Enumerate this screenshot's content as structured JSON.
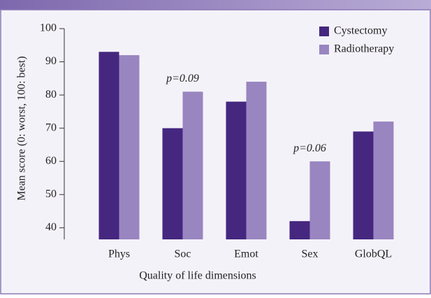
{
  "chart_data": {
    "type": "bar",
    "x_label": "Quality of life dimensions",
    "y_label": "Mean score (0: worst, 100: best)",
    "categories": [
      "Phys",
      "Soc",
      "Emot",
      "Sex",
      "GlobQL"
    ],
    "series": [
      {
        "name": "Cystectomy",
        "color": "#45277f",
        "values": [
          93,
          70,
          78,
          42,
          69
        ]
      },
      {
        "name": "Radiotherapy",
        "color": "#9985c0",
        "values": [
          92,
          81,
          84,
          60,
          72
        ]
      }
    ],
    "annotations": [
      {
        "text": "p=0.09",
        "category": "Soc"
      },
      {
        "text": "p=0.06",
        "category": "Sex"
      }
    ],
    "ylim": [
      36.5,
      100
    ],
    "yticks": [
      40,
      50,
      60,
      70,
      80,
      90,
      100
    ],
    "legend": "top-right"
  }
}
